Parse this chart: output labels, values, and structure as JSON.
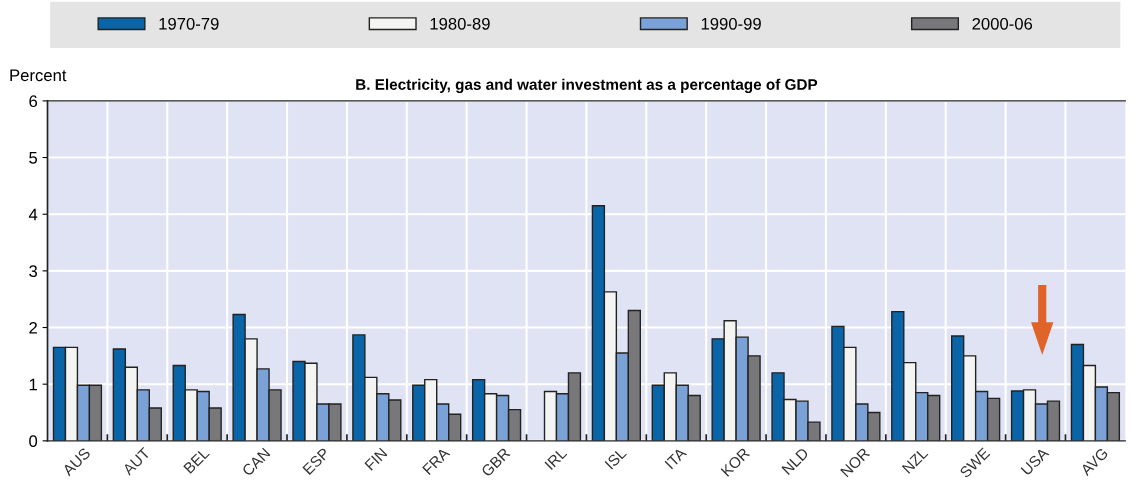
{
  "chart_data": {
    "type": "bar",
    "title": "B. Electricity, gas and water investment as a percentage of GDP",
    "ylabel": "Percent",
    "categories": [
      "AUS",
      "AUT",
      "BEL",
      "CAN",
      "ESP",
      "FIN",
      "FRA",
      "GBR",
      "IRL",
      "ISL",
      "ITA",
      "KOR",
      "NLD",
      "NOR",
      "NZL",
      "SWE",
      "USA",
      "AVG"
    ],
    "series": [
      {
        "name": "1970-79",
        "color": "#0a64a8",
        "values": [
          1.65,
          1.62,
          1.33,
          2.23,
          1.4,
          1.87,
          0.98,
          1.08,
          null,
          4.15,
          0.98,
          1.8,
          1.2,
          2.02,
          2.28,
          1.85,
          0.88,
          1.7
        ]
      },
      {
        "name": "1980-89",
        "color": "#f4f4f2",
        "values": [
          1.65,
          1.3,
          0.9,
          1.8,
          1.37,
          1.12,
          1.08,
          0.83,
          0.87,
          2.63,
          1.2,
          2.12,
          0.73,
          1.65,
          1.38,
          1.5,
          0.9,
          1.33
        ]
      },
      {
        "name": "1990-99",
        "color": "#7aa2d6",
        "values": [
          0.98,
          0.9,
          0.87,
          1.27,
          0.65,
          0.83,
          0.65,
          0.8,
          0.83,
          1.55,
          0.98,
          1.83,
          0.7,
          0.65,
          0.85,
          0.87,
          0.65,
          0.95
        ]
      },
      {
        "name": "2000-06",
        "color": "#78787a",
        "values": [
          0.98,
          0.58,
          0.58,
          0.9,
          0.65,
          0.72,
          0.47,
          0.55,
          1.2,
          2.3,
          0.8,
          1.5,
          0.33,
          0.5,
          0.8,
          0.75,
          0.7,
          0.85
        ]
      }
    ],
    "ylim": [
      0,
      6
    ],
    "yticks": [
      0,
      1,
      2,
      3,
      4,
      5,
      6
    ],
    "grid": true,
    "legend": "top"
  }
}
